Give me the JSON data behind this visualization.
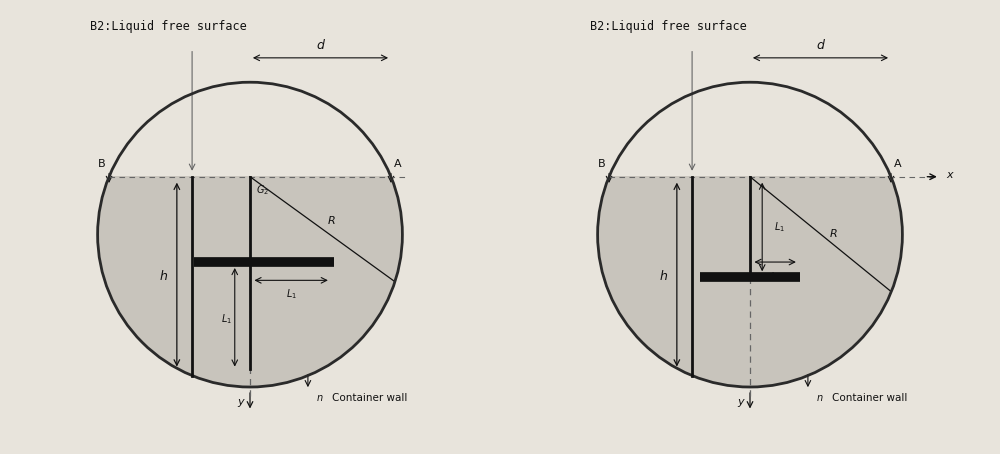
{
  "bg_color": "#e8e4dc",
  "circle_color": "#2a2a2a",
  "fill_color": "#c8c4bc",
  "line_color": "#111111",
  "dashed_color": "#666666",
  "text_color": "#111111",
  "title": "B2:Liquid free surface",
  "container_label": "Container wall",
  "n_label": "n",
  "R_label": "R",
  "h_label": "h",
  "d_label": "d",
  "B_label": "B",
  "A_label": "A",
  "y_label": "y",
  "x_label": "x",
  "L1_label": "L₁",
  "G2_label": "G₂"
}
